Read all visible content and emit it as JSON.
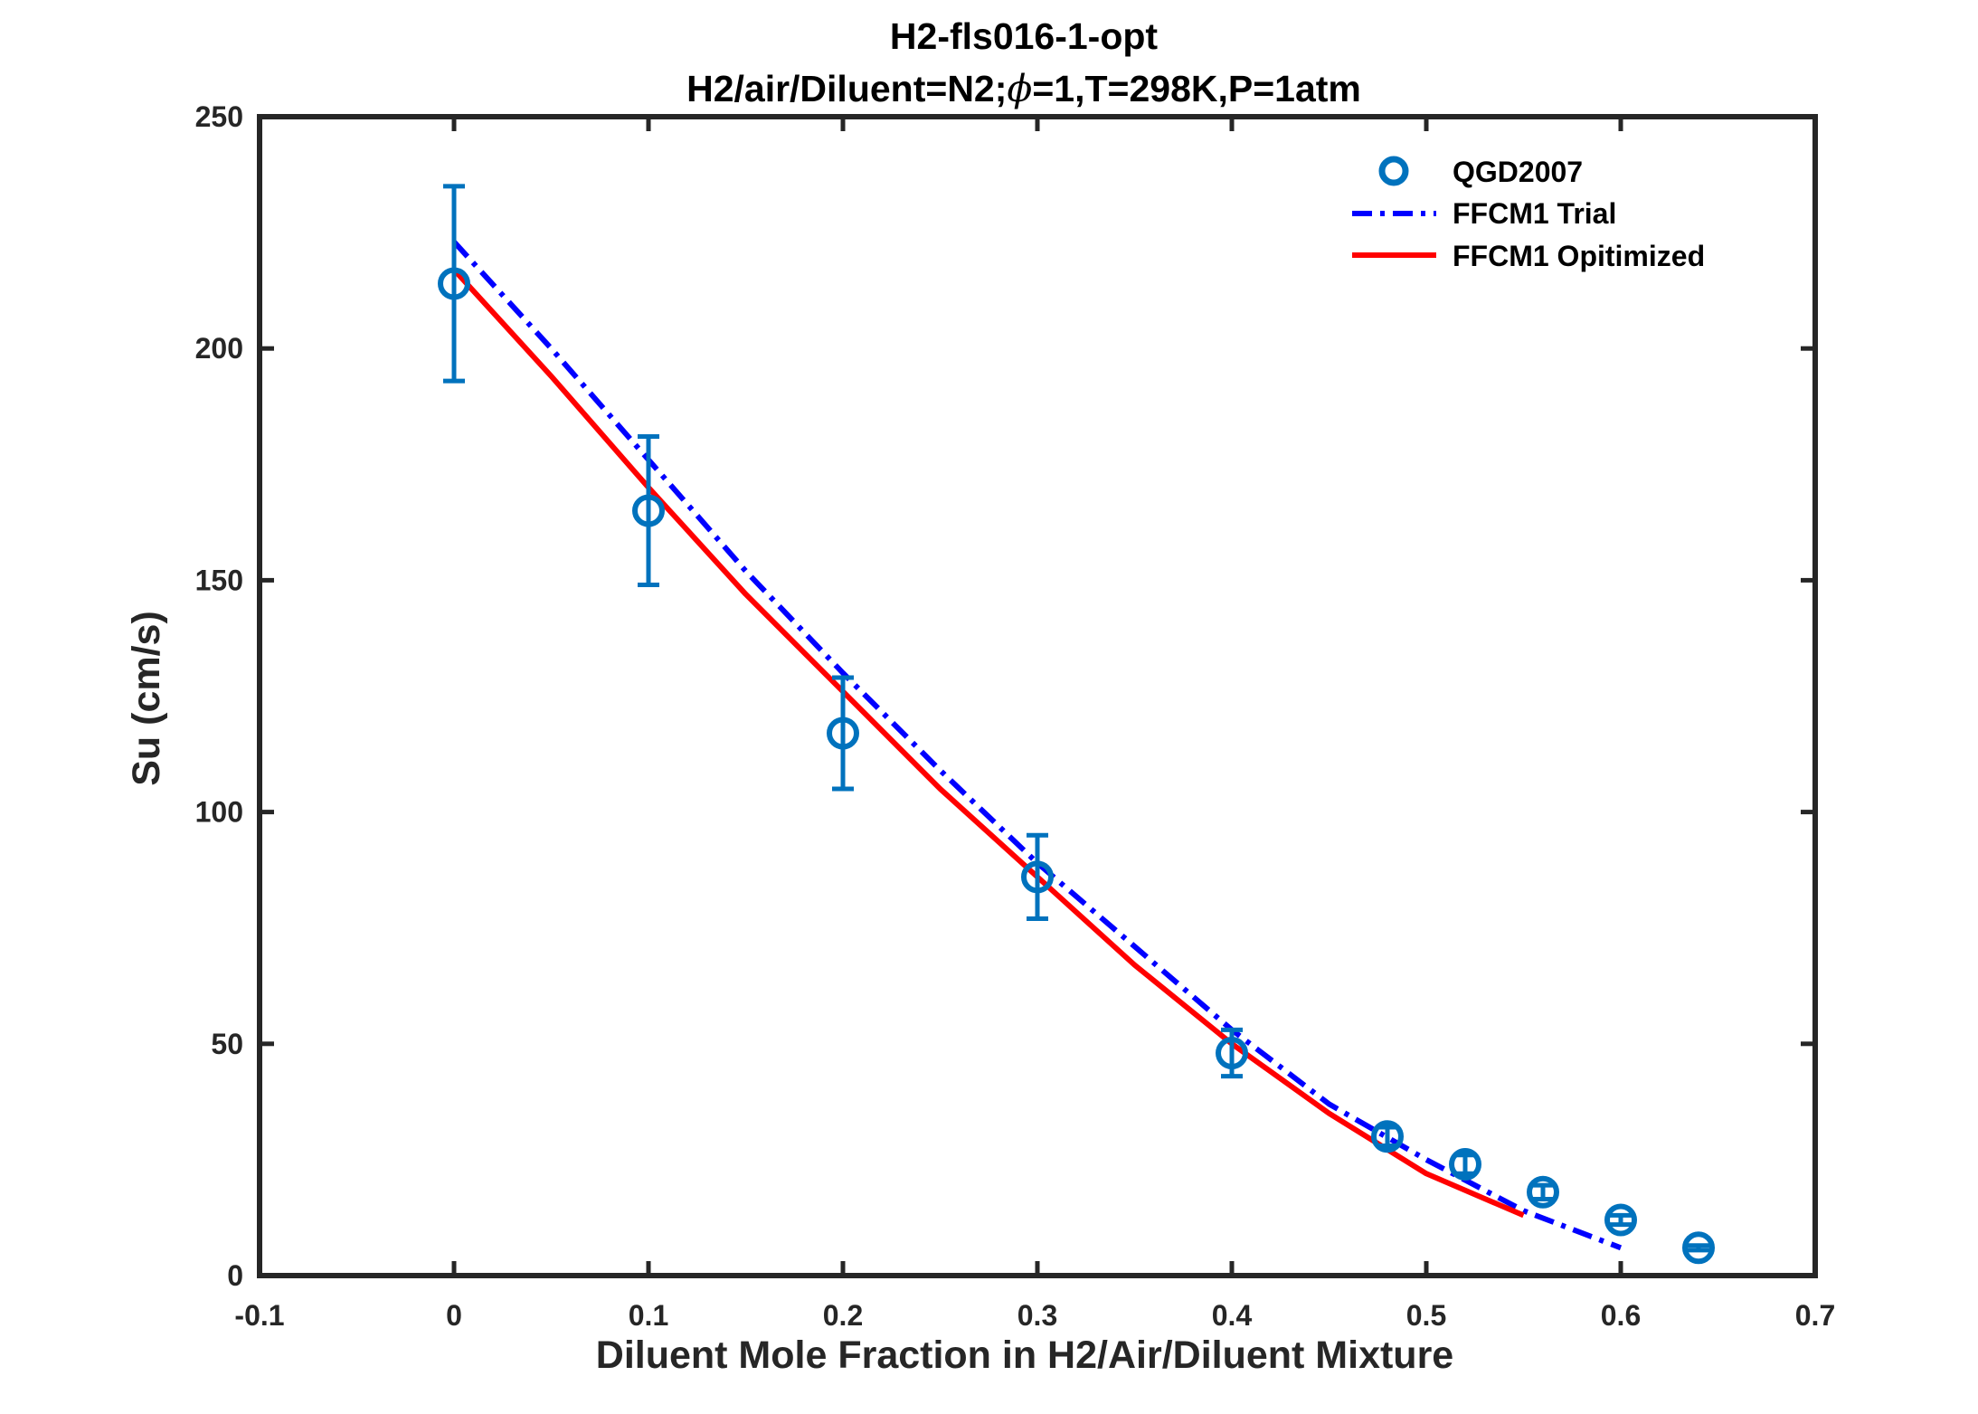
{
  "chart_data": {
    "type": "line",
    "title": "H2-fls016-1-opt",
    "subtitle_parts": [
      "H2/air/Diluent=N2;",
      "ϕ",
      "=1,T=298K,P=1atm"
    ],
    "xlabel": "Diluent Mole Fraction in H2/Air/Diluent Mixture",
    "ylabel": "Su (cm/s)",
    "xlim": [
      -0.1,
      0.7
    ],
    "ylim": [
      0,
      250
    ],
    "xticks": [
      -0.1,
      0,
      0.1,
      0.2,
      0.3,
      0.4,
      0.5,
      0.6,
      0.7
    ],
    "xtick_labels": [
      "-0.1",
      "0",
      "0.1",
      "0.2",
      "0.3",
      "0.4",
      "0.5",
      "0.6",
      "0.7"
    ],
    "yticks": [
      0,
      50,
      100,
      150,
      200,
      250
    ],
    "ytick_labels": [
      "0",
      "50",
      "100",
      "150",
      "200",
      "250"
    ],
    "grid": false,
    "legend_position": "top-right",
    "series": [
      {
        "name": "QGD2007",
        "kind": "scatter-errorbar",
        "color": "#0072BD",
        "x": [
          0,
          0.1,
          0.2,
          0.3,
          0.4,
          0.48,
          0.52,
          0.56,
          0.6,
          0.64
        ],
        "y": [
          214,
          165,
          117,
          86,
          48,
          30,
          24,
          18,
          12,
          6
        ],
        "err_low": [
          21,
          16,
          12,
          9,
          5,
          2,
          2,
          1.5,
          1,
          0.5
        ],
        "err_high": [
          21,
          16,
          12,
          9,
          5,
          2,
          2,
          1.5,
          1,
          0.5
        ]
      },
      {
        "name": "FFCM1 Trial",
        "kind": "line",
        "style": "dashdot",
        "color": "#0000FF",
        "x": [
          0,
          0.05,
          0.1,
          0.15,
          0.2,
          0.25,
          0.3,
          0.35,
          0.4,
          0.45,
          0.5,
          0.55,
          0.6
        ],
        "y": [
          223,
          200,
          176,
          152,
          130,
          109,
          89,
          71,
          53,
          37,
          25,
          14,
          6
        ]
      },
      {
        "name": "FFCM1 Opitimized",
        "kind": "line",
        "style": "solid",
        "color": "#FF0000",
        "x": [
          0,
          0.05,
          0.1,
          0.15,
          0.2,
          0.25,
          0.3,
          0.35,
          0.4,
          0.45,
          0.5,
          0.55
        ],
        "y": [
          217,
          194,
          170,
          147,
          126,
          105,
          86,
          67,
          50,
          35,
          22,
          13
        ]
      }
    ]
  }
}
